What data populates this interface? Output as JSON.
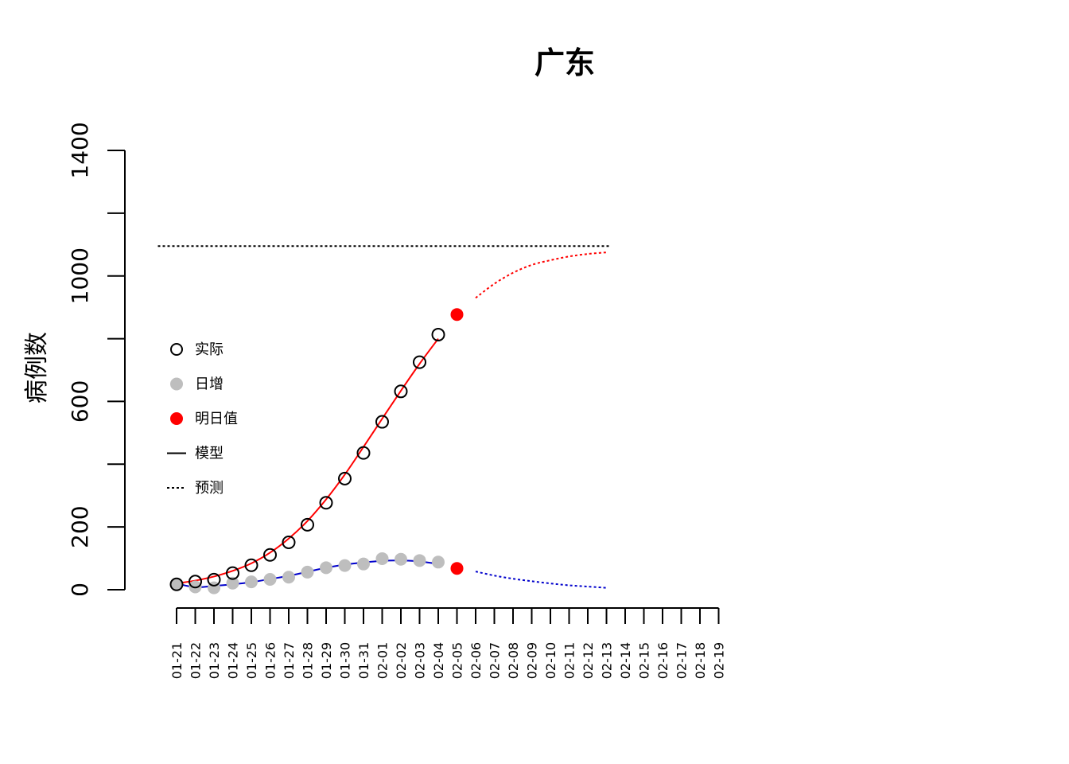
{
  "chart_data": {
    "type": "line",
    "title": "广东",
    "xlabel": "",
    "ylabel": "病例数",
    "ylim": [
      0,
      1400
    ],
    "y_ticks": [
      "0",
      "200",
      "600",
      "1000",
      "1400"
    ],
    "x_ticks": [
      "01-21",
      "01-22",
      "01-23",
      "01-24",
      "01-25",
      "01-26",
      "01-27",
      "01-28",
      "01-29",
      "01-30",
      "01-31",
      "02-01",
      "02-02",
      "02-03",
      "02-04",
      "02-05",
      "02-06",
      "02-07",
      "02-08",
      "02-09",
      "02-10",
      "02-11",
      "02-12",
      "02-13",
      "02-14",
      "02-15",
      "02-16",
      "02-17",
      "02-18",
      "02-19"
    ],
    "legend": [
      {
        "label": "实际",
        "style": "open-circle"
      },
      {
        "label": "日增",
        "style": "gray-dot"
      },
      {
        "label": "明日值",
        "style": "red-dot"
      },
      {
        "label": "模型",
        "style": "solid-line"
      },
      {
        "label": "预测",
        "style": "dotted-line"
      }
    ],
    "legend_position": "left-middle",
    "series": [
      {
        "name": "实际",
        "x": [
          "01-21",
          "01-22",
          "01-23",
          "01-24",
          "01-25",
          "01-26",
          "01-27",
          "01-28",
          "01-29",
          "01-30",
          "01-31",
          "02-01",
          "02-02",
          "02-03",
          "02-04"
        ],
        "values": [
          17,
          26,
          32,
          53,
          78,
          111,
          151,
          207,
          277,
          354,
          436,
          535,
          632,
          725,
          813
        ]
      },
      {
        "name": "日增",
        "x": [
          "01-21",
          "01-22",
          "01-23",
          "01-24",
          "01-25",
          "01-26",
          "01-27",
          "01-28",
          "01-29",
          "01-30",
          "01-31",
          "02-01",
          "02-02",
          "02-03",
          "02-04"
        ],
        "values": [
          17,
          9,
          6,
          21,
          25,
          33,
          40,
          56,
          70,
          77,
          82,
          99,
          97,
          93,
          88
        ]
      },
      {
        "name": "明日值",
        "x": [
          "02-05",
          "02-05"
        ],
        "values": [
          877,
          68
        ]
      },
      {
        "name": "模型",
        "color": "#ff0000",
        "x": [
          0,
          1,
          2,
          3,
          4,
          5,
          6,
          7,
          8,
          9,
          10,
          11,
          12,
          13,
          14
        ],
        "values": [
          20,
          29,
          42,
          60,
          84,
          118,
          163,
          219,
          288,
          367,
          455,
          545,
          634,
          720,
          800
        ]
      },
      {
        "name": "模型",
        "color": "#0000cc",
        "x": [
          0,
          1,
          2,
          3,
          4,
          5,
          6,
          7,
          8,
          9,
          10,
          11,
          12,
          13,
          14
        ],
        "values": [
          20,
          8,
          12,
          17,
          24,
          34,
          44,
          57,
          70,
          80,
          87,
          92,
          93,
          90,
          82
        ]
      },
      {
        "name": "预测",
        "color": "#ff0000",
        "x": [
          16,
          17,
          18,
          19,
          20,
          21,
          22,
          23
        ],
        "values": [
          930,
          975,
          1010,
          1035,
          1050,
          1062,
          1070,
          1075
        ]
      },
      {
        "name": "预测",
        "color": "#0000cc",
        "x": [
          16,
          17,
          18,
          19,
          20,
          21,
          22,
          23
        ],
        "values": [
          58,
          45,
          35,
          27,
          20,
          14,
          10,
          6
        ]
      }
    ],
    "asymptote": 1095,
    "colors": {
      "actual": "#000000",
      "daily": "#bebebe",
      "tomorrow": "#ff0000",
      "model_cumulative": "#ff0000",
      "model_daily": "#0000cc",
      "asymptote": "#000000"
    }
  }
}
